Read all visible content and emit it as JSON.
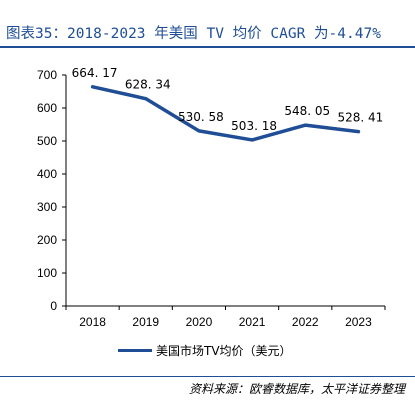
{
  "title": "图表35：2018-2023 年美国 TV 均价 CAGR 为-4.47%",
  "source": "资料来源：欧睿数据库，太平洋证券整理",
  "colors": {
    "accent": "#1f4e96",
    "line": "#1f4e96"
  },
  "chart_data": {
    "type": "line",
    "categories": [
      "2018",
      "2019",
      "2020",
      "2021",
      "2022",
      "2023"
    ],
    "series": [
      {
        "name": "美国市场TV均价（美元）",
        "values": [
          664.17,
          628.34,
          530.58,
          503.18,
          548.05,
          528.41
        ],
        "labels": [
          "664. 17",
          "628. 34",
          "530. 58",
          "503. 18",
          "548. 05",
          "528. 41"
        ]
      }
    ],
    "yticks": [
      "0",
      "100",
      "200",
      "300",
      "400",
      "500",
      "600",
      "700"
    ],
    "ylim": [
      0,
      700
    ],
    "grid": false,
    "legend": "bottom"
  }
}
